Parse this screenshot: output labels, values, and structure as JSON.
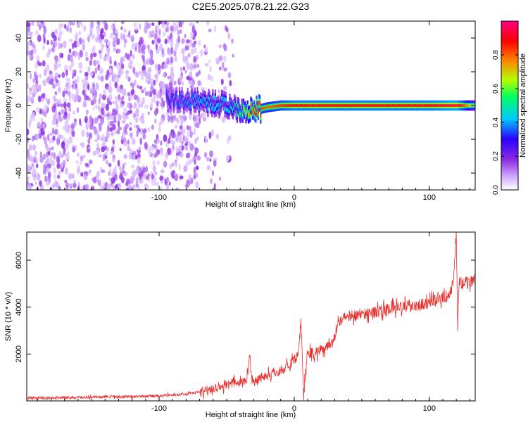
{
  "title": "C2E5.2025.078.21.22.G23",
  "chart_data": [
    {
      "type": "heatmap",
      "xlabel": "Height of straight line (km)",
      "ylabel": "Frequency (Hz)",
      "xlim": [
        -198,
        134
      ],
      "ylim": [
        -50,
        50
      ],
      "xticks": [
        -100,
        0,
        100
      ],
      "yticks": [
        -40,
        -20,
        0,
        20,
        40
      ],
      "tick_labels_x": [
        "-100",
        "0",
        "100"
      ],
      "tick_labels_y": [
        "-40",
        "-20",
        "0",
        "20",
        "40"
      ],
      "colorbar": {
        "label": "Normalized spectral amplitude",
        "range": [
          0,
          1
        ],
        "ticks": [
          0.0,
          0.2,
          0.4,
          0.6,
          0.8
        ],
        "tick_labels": [
          "0.0",
          "0.2",
          "0.4",
          "0.6",
          "0.8"
        ],
        "colors": [
          "#ffffff",
          "#cfa8ff",
          "#8a2be2",
          "#2a00ff",
          "#00c8ff",
          "#00ff60",
          "#b4ff00",
          "#ff8000",
          "#ff0000",
          "#ff007f"
        ]
      },
      "noise_region": {
        "x_from": -198,
        "x_to": -70,
        "level": 0.2
      },
      "ridge": [
        {
          "x": -95,
          "freq": 3,
          "amp": 0.35
        },
        {
          "x": -80,
          "freq": 3,
          "amp": 0.4
        },
        {
          "x": -65,
          "freq": 2,
          "amp": 0.45
        },
        {
          "x": -50,
          "freq": 0,
          "amp": 0.45
        },
        {
          "x": -40,
          "freq": -2,
          "amp": 0.55
        },
        {
          "x": -30,
          "freq": -3,
          "amp": 0.85
        },
        {
          "x": -20,
          "freq": -1,
          "amp": 0.8
        },
        {
          "x": -10,
          "freq": 0,
          "amp": 0.85
        },
        {
          "x": 0,
          "freq": 0,
          "amp": 0.9
        },
        {
          "x": 10,
          "freq": 0,
          "amp": 0.9
        },
        {
          "x": 50,
          "freq": 0,
          "amp": 0.9
        },
        {
          "x": 100,
          "freq": 0,
          "amp": 0.9
        },
        {
          "x": 120,
          "freq": 0,
          "amp": 0.95
        },
        {
          "x": 134,
          "freq": 0,
          "amp": 0.6
        }
      ]
    },
    {
      "type": "line",
      "xlabel": "Height of straight line (km)",
      "ylabel": "SNR (10 * v/v)",
      "xlim": [
        -198,
        134
      ],
      "ylim": [
        0,
        7200
      ],
      "xticks": [
        -100,
        0,
        100
      ],
      "yticks": [
        2000,
        4000,
        6000
      ],
      "tick_labels_x": [
        "-100",
        "0",
        "100"
      ],
      "tick_labels_y": [
        "2000",
        "4000",
        "6000"
      ],
      "color": "#e8312e",
      "series": [
        {
          "x": [
            -198,
            -180,
            -160,
            -140,
            -120,
            -100,
            -90,
            -80,
            -70,
            -60,
            -50,
            -40,
            -35,
            -33,
            -31,
            -25,
            -20,
            -10,
            -5,
            0,
            3,
            5,
            7,
            10,
            15,
            20,
            25,
            30,
            32,
            35,
            40,
            50,
            60,
            70,
            80,
            90,
            100,
            105,
            110,
            115,
            118,
            120,
            121,
            122,
            125,
            130,
            134
          ],
          "y": [
            120,
            130,
            150,
            170,
            180,
            220,
            250,
            300,
            380,
            550,
            700,
            800,
            900,
            1900,
            800,
            1000,
            1100,
            1300,
            1500,
            1700,
            1900,
            3500,
            200,
            2100,
            2000,
            2200,
            2400,
            2600,
            3400,
            3500,
            3600,
            3700,
            3800,
            3900,
            4000,
            4100,
            4200,
            4300,
            4400,
            4500,
            5200,
            7200,
            2900,
            5100,
            5000,
            5100,
            5200
          ]
        }
      ]
    }
  ]
}
